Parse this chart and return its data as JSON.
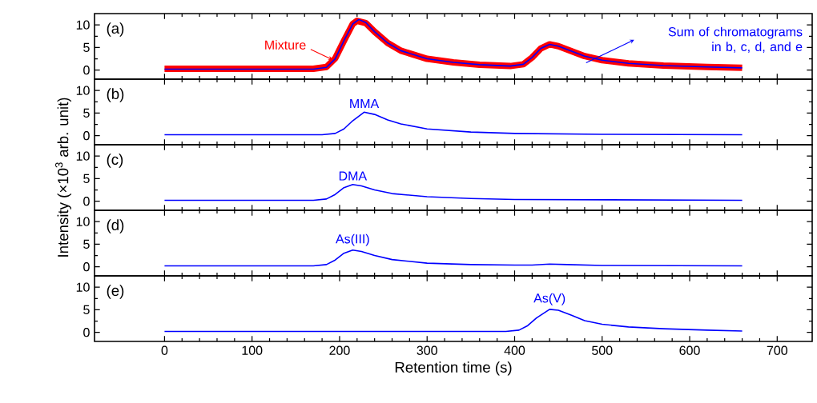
{
  "chart_data": [
    {
      "type": "line",
      "xlim": [
        -80,
        740
      ],
      "ylim": [
        -2,
        12.5
      ],
      "xticks": [
        0,
        100,
        200,
        300,
        400,
        500,
        600,
        700
      ],
      "yticks": [
        0,
        5,
        10
      ],
      "tick_labels": "y",
      "series": [
        {
          "color": "#ff0000",
          "x": [
            0,
            100,
            170,
            185,
            195,
            205,
            215,
            220,
            230,
            240,
            255,
            270,
            300,
            330,
            360,
            395,
            410,
            420,
            430,
            440,
            450,
            465,
            480,
            500,
            530,
            570,
            620,
            660
          ],
          "values": [
            0.3,
            0.3,
            0.3,
            0.7,
            2.6,
            6.5,
            10.2,
            10.9,
            10.4,
            8.5,
            6,
            4.3,
            2.5,
            1.7,
            1.2,
            0.9,
            1.3,
            2.8,
            4.8,
            5.7,
            5.3,
            4.2,
            3.1,
            2.2,
            1.5,
            1,
            0.7,
            0.5
          ]
        },
        {
          "color": "#0000ff",
          "x": [
            0,
            100,
            170,
            185,
            195,
            205,
            215,
            222,
            230,
            240,
            255,
            270,
            300,
            330,
            360,
            395,
            410,
            420,
            430,
            440,
            450,
            465,
            480,
            500,
            530,
            570,
            620,
            660
          ],
          "values": [
            0.2,
            0.2,
            0.2,
            0.6,
            2.5,
            6.5,
            10.2,
            11.2,
            10.5,
            8.5,
            6,
            4.3,
            2.5,
            1.7,
            1.2,
            0.9,
            1.3,
            2.8,
            4.8,
            5.7,
            5.3,
            4.2,
            3.1,
            2.2,
            1.5,
            1,
            0.7,
            0.5
          ]
        }
      ],
      "annotations": [
        "(a)",
        {
          "text": "Mixture",
          "x": 192,
          "y": 2.3
        },
        "Sum of chromatograms in b, c, d, and e"
      ]
    },
    {
      "type": "line",
      "xlim": [
        -80,
        740
      ],
      "ylim": [
        -2,
        12.5
      ],
      "xticks": [
        0,
        100,
        200,
        300,
        400,
        500,
        600,
        700
      ],
      "yticks": [
        0,
        5,
        10
      ],
      "tick_labels": "y",
      "series": [
        {
          "color": "#0000ff",
          "x": [
            0,
            180,
            195,
            205,
            215,
            228,
            240,
            255,
            270,
            300,
            350,
            400,
            500,
            660
          ],
          "values": [
            0.2,
            0.2,
            0.5,
            1.5,
            3.3,
            5.2,
            4.7,
            3.5,
            2.6,
            1.5,
            0.8,
            0.5,
            0.3,
            0.2
          ]
        }
      ],
      "annotations": [
        "(b)",
        {
          "text": "MMA",
          "x": 228,
          "y": 5.2
        }
      ]
    },
    {
      "type": "line",
      "xlim": [
        -80,
        740
      ],
      "ylim": [
        -2,
        12.5
      ],
      "xticks": [
        0,
        100,
        200,
        300,
        400,
        500,
        600,
        700
      ],
      "yticks": [
        0,
        5,
        10
      ],
      "tick_labels": "y",
      "ylabel": "Intensity (×10$^{3}$ arb. unit)",
      "series": [
        {
          "color": "#0000ff",
          "x": [
            0,
            170,
            185,
            195,
            205,
            215,
            225,
            240,
            260,
            300,
            350,
            400,
            660
          ],
          "values": [
            0.2,
            0.2,
            0.5,
            1.5,
            3,
            3.7,
            3.4,
            2.5,
            1.7,
            1,
            0.6,
            0.4,
            0.2
          ]
        }
      ],
      "annotations": [
        "(c)",
        {
          "text": "DMA",
          "x": 215,
          "y": 3.7
        }
      ]
    },
    {
      "type": "line",
      "xlim": [
        -80,
        740
      ],
      "ylim": [
        -2,
        12.5
      ],
      "xticks": [
        0,
        100,
        200,
        300,
        400,
        500,
        600,
        700
      ],
      "yticks": [
        0,
        5,
        10
      ],
      "tick_labels": "y",
      "series": [
        {
          "color": "#0000ff",
          "x": [
            0,
            170,
            185,
            195,
            205,
            215,
            225,
            240,
            260,
            300,
            350,
            400,
            420,
            440,
            460,
            500,
            660
          ],
          "values": [
            0.2,
            0.2,
            0.5,
            1.5,
            3,
            3.7,
            3.4,
            2.5,
            1.6,
            0.8,
            0.5,
            0.4,
            0.4,
            0.6,
            0.5,
            0.3,
            0.2
          ]
        }
      ],
      "annotations": [
        "(d)",
        {
          "text": "As(III)",
          "x": 215,
          "y": 3.7
        }
      ]
    },
    {
      "type": "line",
      "xlim": [
        -80,
        740
      ],
      "ylim": [
        -2,
        12.5
      ],
      "xticks": [
        0,
        100,
        200,
        300,
        400,
        500,
        600,
        700
      ],
      "yticks": [
        0,
        5,
        10
      ],
      "xlabel": "Retention time (s)",
      "series": [
        {
          "color": "#0000ff",
          "x": [
            0,
            390,
            405,
            415,
            425,
            440,
            450,
            465,
            480,
            500,
            530,
            570,
            620,
            660
          ],
          "values": [
            0.2,
            0.2,
            0.5,
            1.5,
            3.2,
            5.1,
            4.9,
            3.8,
            2.6,
            1.8,
            1.2,
            0.8,
            0.5,
            0.3
          ]
        }
      ],
      "annotations": [
        "(e)",
        {
          "text": "As(V)",
          "x": 440,
          "y": 5.1
        }
      ]
    }
  ]
}
